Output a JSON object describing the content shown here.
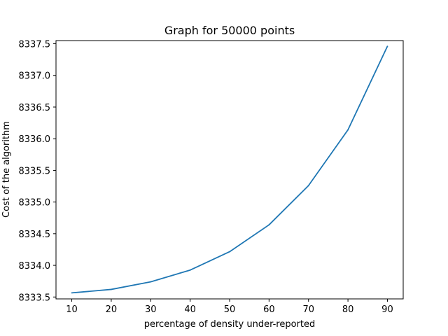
{
  "chart_data": {
    "type": "line",
    "title": "Graph for 50000 points",
    "xlabel": "percentage of density under-reported",
    "ylabel": "Cost of the algorithm",
    "x": [
      10,
      20,
      30,
      40,
      50,
      60,
      70,
      80,
      90
    ],
    "series": [
      {
        "values": [
          8333.565,
          8333.62,
          8333.74,
          8333.925,
          8334.215,
          8334.64,
          8335.26,
          8336.14,
          8337.46
        ],
        "color": "#1f77b4"
      }
    ],
    "xlim": [
      6,
      94
    ],
    "ylim": [
      8333.47,
      8337.55
    ],
    "xticks": [
      10,
      20,
      30,
      40,
      50,
      60,
      70,
      80,
      90
    ],
    "xtick_labels": [
      "10",
      "20",
      "30",
      "40",
      "50",
      "60",
      "70",
      "80",
      "90"
    ],
    "yticks": [
      8333.5,
      8334.0,
      8334.5,
      8335.0,
      8335.5,
      8336.0,
      8336.5,
      8337.0,
      8337.5
    ],
    "ytick_labels": [
      "8333.5",
      "8334.0",
      "8334.5",
      "8335.0",
      "8335.5",
      "8336.0",
      "8336.5",
      "8337.0",
      "8337.5"
    ],
    "grid": false,
    "legend": "none"
  }
}
